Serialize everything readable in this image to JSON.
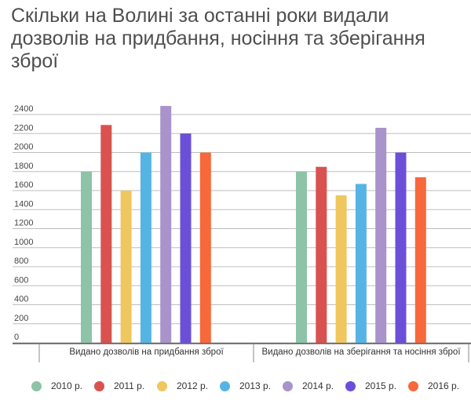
{
  "chart_data": {
    "type": "bar",
    "title": "Скільки на Волині за останні роки видали дозволів на придбання, носіння та зберігання зброї",
    "categories": [
      "Видано дозволів на придбання зброї",
      "Видано дозволів на зберігання та носіння зброї"
    ],
    "series": [
      {
        "name": "2010 р.",
        "color": "#8dc3a7",
        "values": [
          1800,
          1800
        ]
      },
      {
        "name": "2011 р.",
        "color": "#d9524f",
        "values": [
          2290,
          1850
        ]
      },
      {
        "name": "2012 р.",
        "color": "#efc75e",
        "values": [
          1600,
          1550
        ]
      },
      {
        "name": "2013 р.",
        "color": "#56b4e5",
        "values": [
          2000,
          1670
        ]
      },
      {
        "name": "2014 р.",
        "color": "#a993cb",
        "values": [
          2490,
          2260
        ]
      },
      {
        "name": "2015 р.",
        "color": "#6b4fd8",
        "values": [
          2200,
          2000
        ]
      },
      {
        "name": "2016 р.",
        "color": "#f7683a",
        "values": [
          2000,
          1740
        ]
      }
    ],
    "yticks": [
      "0",
      "200",
      "400",
      "600",
      "800",
      "1000",
      "1200",
      "1400",
      "1600",
      "1800",
      "2000",
      "2200",
      "2400"
    ],
    "ylim": [
      0,
      2400
    ],
    "grid": true,
    "legend": "bottom",
    "xlabel": "",
    "ylabel": ""
  }
}
